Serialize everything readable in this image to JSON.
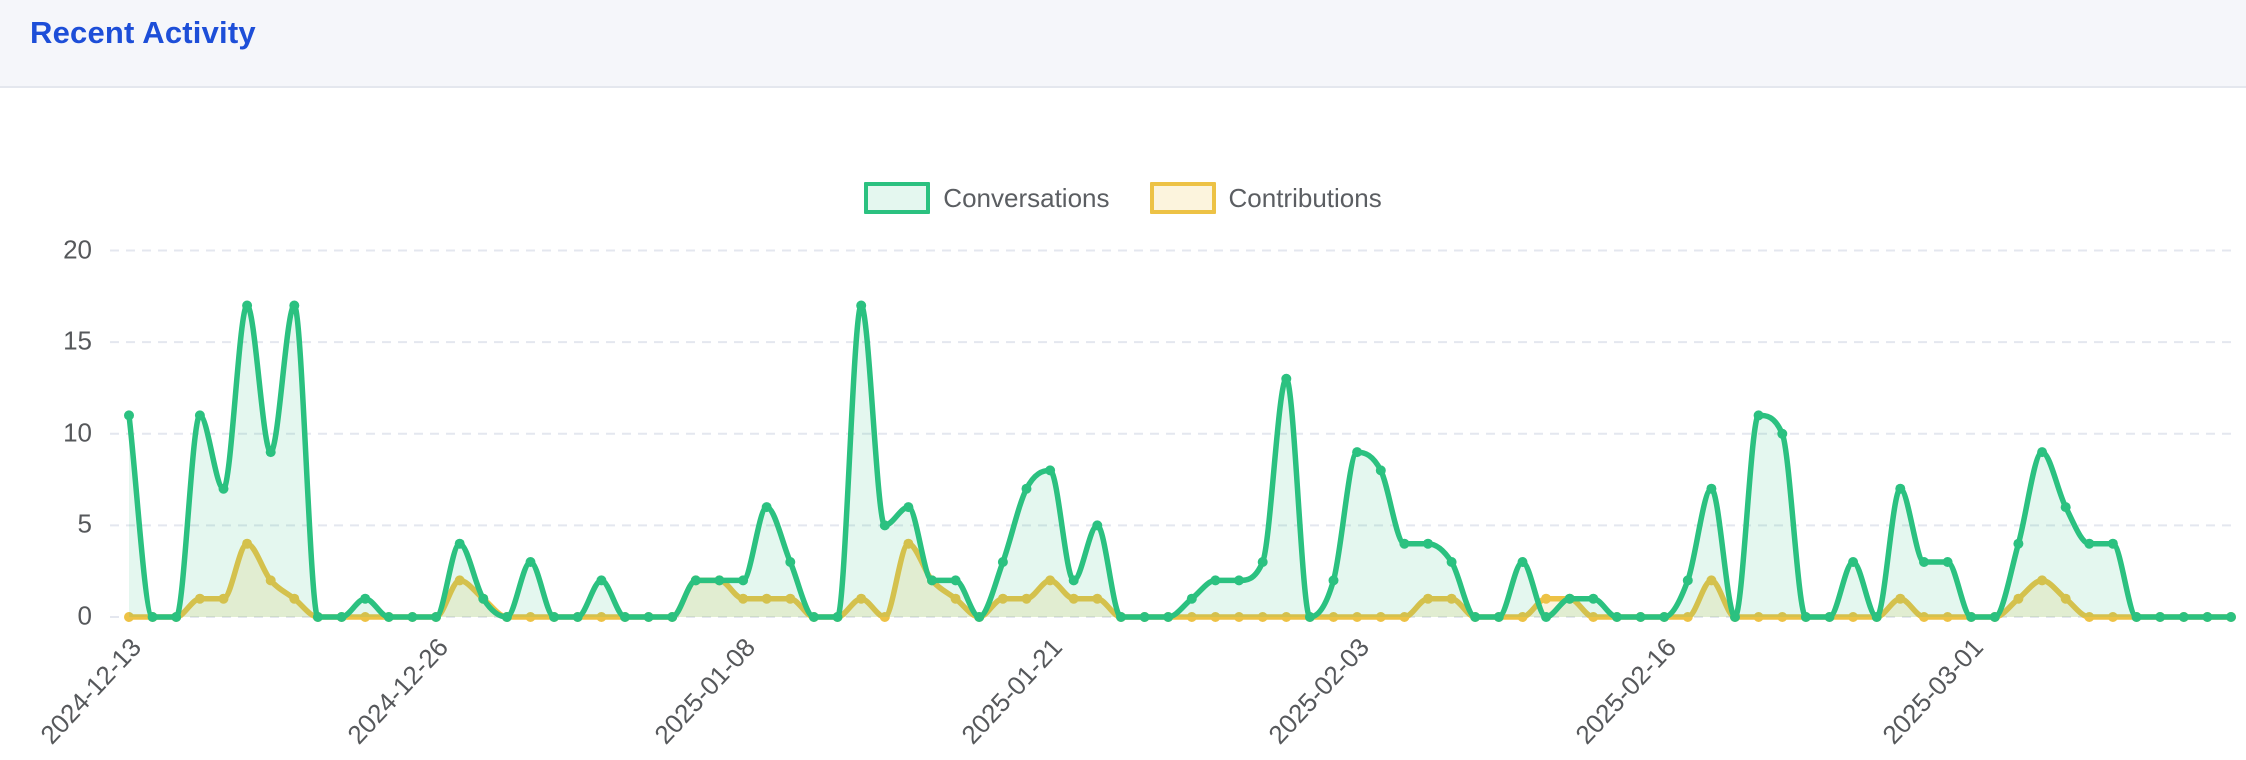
{
  "header": {
    "title": "Recent Activity"
  },
  "colors": {
    "title_blue": "#1d4ed8",
    "header_bg": "#f5f6fa",
    "header_border": "#e4e7ee",
    "grid_line": "#e4e7ef",
    "axis_label": "#56585b",
    "legend_text": "#5b5e62",
    "conversations_green": "#2bc180",
    "contributions_yellow": "#edc245"
  },
  "chart_data": {
    "type": "line",
    "title": "",
    "xlabel": "",
    "ylabel": "",
    "ylim": [
      0,
      20
    ],
    "y_ticks": [
      0,
      5,
      10,
      15,
      20
    ],
    "grid": "horizontal dashed",
    "legend_position": "top center",
    "point_style": "filled circle",
    "interpolation": "monotone cubic (smoothed)",
    "x_start_date": "2024-12-13",
    "x_end_date": "2025-03-12",
    "x_tick_labels": [
      "2024-12-13",
      "2024-12-26",
      "2025-01-08",
      "2025-01-21",
      "2025-02-03",
      "2025-02-16",
      "2025-03-01"
    ],
    "x_tick_day_indexes": [
      0,
      13,
      26,
      39,
      52,
      65,
      78
    ],
    "days_total": 90,
    "series": [
      {
        "name": "Conversations",
        "color": "#2bc180",
        "fill": "rgba(43,193,128,0.13)",
        "values": [
          11,
          0,
          0,
          11,
          7,
          17,
          9,
          17,
          0,
          0,
          1,
          0,
          0,
          0,
          4,
          1,
          0,
          3,
          0,
          0,
          2,
          0,
          0,
          0,
          2,
          2,
          2,
          6,
          3,
          0,
          0,
          17,
          5,
          6,
          2,
          2,
          0,
          3,
          7,
          8,
          2,
          5,
          0,
          0,
          0,
          1,
          2,
          2,
          3,
          13,
          0,
          2,
          9,
          8,
          4,
          4,
          3,
          0,
          0,
          3,
          0,
          1,
          1,
          0,
          0,
          0,
          2,
          7,
          0,
          11,
          10,
          0,
          0,
          3,
          0,
          7,
          3,
          3,
          0,
          0,
          4,
          9,
          6,
          4,
          4,
          0,
          0,
          0,
          0,
          0
        ]
      },
      {
        "name": "Contributions",
        "color": "#edc245",
        "fill": "rgba(237,194,69,0.18)",
        "values": [
          0,
          0,
          0,
          1,
          1,
          4,
          2,
          1,
          0,
          0,
          0,
          0,
          0,
          0,
          2,
          1,
          0,
          0,
          0,
          0,
          0,
          0,
          0,
          0,
          2,
          2,
          1,
          1,
          1,
          0,
          0,
          1,
          0,
          4,
          2,
          1,
          0,
          1,
          1,
          2,
          1,
          1,
          0,
          0,
          0,
          0,
          0,
          0,
          0,
          0,
          0,
          0,
          0,
          0,
          0,
          1,
          1,
          0,
          0,
          0,
          1,
          1,
          0,
          0,
          0,
          0,
          0,
          2,
          0,
          0,
          0,
          0,
          0,
          0,
          0,
          1,
          0,
          0,
          0,
          0,
          1,
          2,
          1,
          0,
          0,
          0,
          0,
          0,
          0,
          0
        ]
      }
    ]
  }
}
